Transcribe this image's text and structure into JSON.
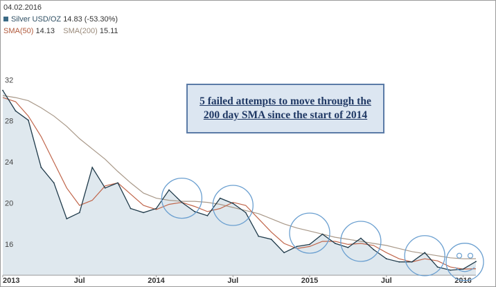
{
  "header": {
    "date": "04.02.2016",
    "series_label": "Silver USD/OZ",
    "series_value": "14.83 (-53.30%)",
    "sma50_label": "SMA(50)",
    "sma50_value": "14.13",
    "sma200_label": "SMA(200)",
    "sma200_value": "15.11"
  },
  "annotation": {
    "text": "5 failed attempts to move through the 200 day SMA since the start of 2014"
  },
  "colors": {
    "price_line": "#1f3a4a",
    "area_fill": "#dfe8ee",
    "sma50": "#c0654a",
    "sma200": "#a89888",
    "circles": "#6a9fd0",
    "callout_fill": "#dce6f1",
    "callout_text": "#1f3864"
  },
  "chart_data": {
    "type": "line",
    "title": "",
    "xlabel": "",
    "ylabel": "",
    "x_ticks": [
      "2013",
      "Jul",
      "2014",
      "Jul",
      "2015",
      "Jul",
      "2016"
    ],
    "y_ticks": [
      16,
      20,
      24,
      28,
      32
    ],
    "ylim": [
      13.5,
      33.5
    ],
    "xlim": [
      "2013-01",
      "2016-02"
    ],
    "grid": false,
    "legend": "top-left",
    "series": [
      {
        "name": "Silver USD/OZ",
        "x": [
          "2013-01",
          "2013-02",
          "2013-03",
          "2013-04",
          "2013-05",
          "2013-06",
          "2013-07",
          "2013-08",
          "2013-09",
          "2013-10",
          "2013-11",
          "2013-12",
          "2014-01",
          "2014-02",
          "2014-03",
          "2014-04",
          "2014-05",
          "2014-06",
          "2014-07",
          "2014-08",
          "2014-09",
          "2014-10",
          "2014-11",
          "2014-12",
          "2015-01",
          "2015-02",
          "2015-03",
          "2015-04",
          "2015-05",
          "2015-06",
          "2015-07",
          "2015-08",
          "2015-09",
          "2015-10",
          "2015-11",
          "2015-12",
          "2016-01",
          "2016-02"
        ],
        "values": [
          31.5,
          29.5,
          28.6,
          24.0,
          22.5,
          19.0,
          19.6,
          24.0,
          22.0,
          22.5,
          20.0,
          19.6,
          20.0,
          21.8,
          20.6,
          19.7,
          19.3,
          21.0,
          20.5,
          19.6,
          17.3,
          17.0,
          15.7,
          16.3,
          16.5,
          17.5,
          16.6,
          16.2,
          17.1,
          16.0,
          15.1,
          14.8,
          14.8,
          15.7,
          14.3,
          14.0,
          14.1,
          14.83
        ]
      },
      {
        "name": "SMA(50)",
        "x": [
          "2013-01",
          "2013-02",
          "2013-03",
          "2013-04",
          "2013-05",
          "2013-06",
          "2013-07",
          "2013-08",
          "2013-09",
          "2013-10",
          "2013-11",
          "2013-12",
          "2014-01",
          "2014-02",
          "2014-03",
          "2014-04",
          "2014-05",
          "2014-06",
          "2014-07",
          "2014-08",
          "2014-09",
          "2014-10",
          "2014-11",
          "2014-12",
          "2015-01",
          "2015-02",
          "2015-03",
          "2015-04",
          "2015-05",
          "2015-06",
          "2015-07",
          "2015-08",
          "2015-09",
          "2015-10",
          "2015-11",
          "2015-12",
          "2016-01",
          "2016-02"
        ],
        "values": [
          30.8,
          30.4,
          29.0,
          27.0,
          24.5,
          22.0,
          20.3,
          20.8,
          22.2,
          22.5,
          21.4,
          20.3,
          19.9,
          20.4,
          20.6,
          20.2,
          19.7,
          20.0,
          20.6,
          20.3,
          19.0,
          17.7,
          16.6,
          16.1,
          16.3,
          16.8,
          16.8,
          16.5,
          16.6,
          16.4,
          15.7,
          15.1,
          14.8,
          15.1,
          14.9,
          14.3,
          14.1,
          14.13
        ]
      },
      {
        "name": "SMA(200)",
        "x": [
          "2013-01",
          "2013-02",
          "2013-03",
          "2013-04",
          "2013-05",
          "2013-06",
          "2013-07",
          "2013-08",
          "2013-09",
          "2013-10",
          "2013-11",
          "2013-12",
          "2014-01",
          "2014-02",
          "2014-03",
          "2014-04",
          "2014-05",
          "2014-06",
          "2014-07",
          "2014-08",
          "2014-09",
          "2014-10",
          "2014-11",
          "2014-12",
          "2015-01",
          "2015-02",
          "2015-03",
          "2015-04",
          "2015-05",
          "2015-06",
          "2015-07",
          "2015-08",
          "2015-09",
          "2015-10",
          "2015-11",
          "2015-12",
          "2016-01",
          "2016-02"
        ],
        "values": [
          31.0,
          30.8,
          30.5,
          29.8,
          29.0,
          28.0,
          26.8,
          25.8,
          24.8,
          23.6,
          22.5,
          21.5,
          21.0,
          20.8,
          20.7,
          20.7,
          20.6,
          20.4,
          20.1,
          19.8,
          19.5,
          19.0,
          18.5,
          18.1,
          17.8,
          17.5,
          17.2,
          17.0,
          16.8,
          16.6,
          16.4,
          16.1,
          15.8,
          15.6,
          15.4,
          15.2,
          15.1,
          15.11
        ]
      }
    ],
    "annotations": [
      {
        "type": "circle",
        "x": "2014-03",
        "y": 21.0
      },
      {
        "type": "circle",
        "x": "2014-07",
        "y": 20.3
      },
      {
        "type": "circle",
        "x": "2015-01",
        "y": 17.6
      },
      {
        "type": "circle",
        "x": "2015-05",
        "y": 16.8
      },
      {
        "type": "circle",
        "x": "2015-10",
        "y": 15.4
      },
      {
        "type": "smiley",
        "x": "2016-02",
        "y": 14.8
      }
    ]
  }
}
